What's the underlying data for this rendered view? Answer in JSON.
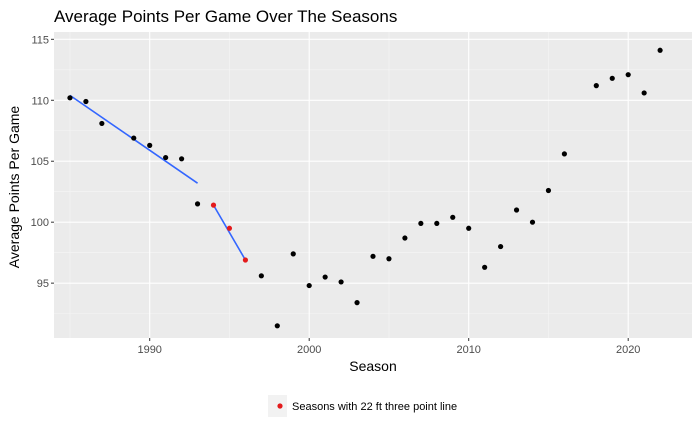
{
  "chart_data": {
    "type": "scatter",
    "title": "Average Points Per Game Over The Seasons",
    "xlabel": "Season",
    "ylabel": "Average Points Per Game",
    "xlim": [
      1984,
      2024
    ],
    "ylim": [
      90.5,
      115.6
    ],
    "x_ticks": [
      1990,
      2000,
      2010,
      2020
    ],
    "y_ticks": [
      95,
      100,
      105,
      110,
      115
    ],
    "grid": true,
    "legend_position": "bottom",
    "colors": {
      "panel": "#ebebeb",
      "grid_major": "#ffffff",
      "points": "#000000",
      "highlight": "#e31a1c",
      "trend": "#3366ff"
    },
    "series": [
      {
        "points": [
          [
            1985,
            110.2
          ],
          [
            1986,
            109.9
          ],
          [
            1987,
            108.1
          ],
          [
            1989,
            106.9
          ],
          [
            1990,
            106.3
          ],
          [
            1991,
            105.3
          ],
          [
            1992,
            105.2
          ],
          [
            1993,
            101.5
          ],
          [
            1997,
            95.6
          ],
          [
            1998,
            91.5
          ],
          [
            1999,
            97.4
          ],
          [
            2000,
            94.8
          ],
          [
            2001,
            95.5
          ],
          [
            2002,
            95.1
          ],
          [
            2003,
            93.4
          ],
          [
            2004,
            97.2
          ],
          [
            2005,
            97.0
          ],
          [
            2006,
            98.7
          ],
          [
            2007,
            99.9
          ],
          [
            2008,
            99.9
          ],
          [
            2009,
            100.4
          ],
          [
            2010,
            99.5
          ],
          [
            2011,
            96.3
          ],
          [
            2012,
            98.0
          ],
          [
            2013,
            101.0
          ],
          [
            2014,
            100.0
          ],
          [
            2015,
            102.6
          ],
          [
            2016,
            105.6
          ],
          [
            2018,
            111.2
          ],
          [
            2019,
            111.8
          ],
          [
            2020,
            112.1
          ],
          [
            2021,
            110.6
          ],
          [
            2022,
            114.1
          ]
        ]
      },
      {
        "name": "Seasons with 22 ft three point line",
        "points": [
          [
            1994,
            101.4
          ],
          [
            1995,
            99.5
          ],
          [
            1996,
            96.9
          ]
        ]
      }
    ],
    "trend_lines": [
      {
        "x": [
          1985,
          1993
        ],
        "y": [
          110.4,
          103.2
        ]
      },
      {
        "x": [
          1994,
          1996
        ],
        "y": [
          101.4,
          96.9
        ]
      }
    ]
  }
}
